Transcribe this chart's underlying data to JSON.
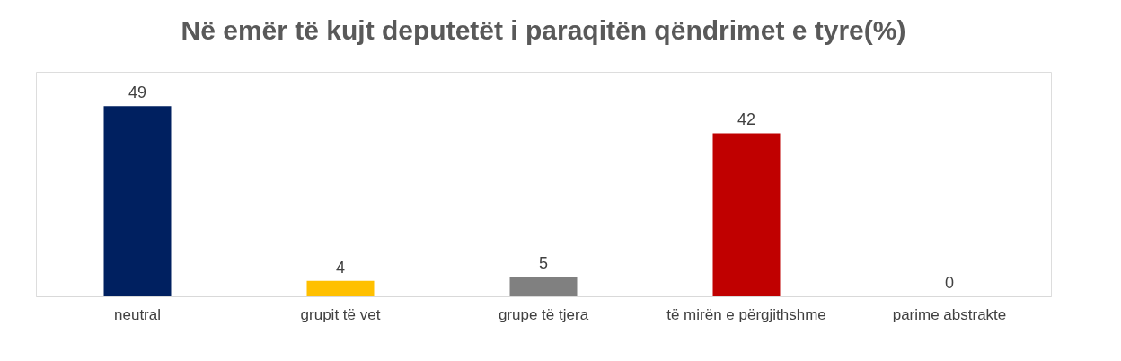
{
  "chart_data": {
    "type": "bar",
    "title": "Në emër të kujt deputetët i paraqitën qëndrimet e tyre(%)",
    "categories": [
      "neutral",
      "grupit të vet",
      "grupe të tjera",
      "të mirën e përgjithshme",
      "parime abstrakte"
    ],
    "values": [
      49,
      4,
      5,
      42,
      0
    ],
    "colors": [
      "#002060",
      "#ffc000",
      "#808080",
      "#c00000",
      "#a5a5a5"
    ],
    "data_labels": true
  }
}
